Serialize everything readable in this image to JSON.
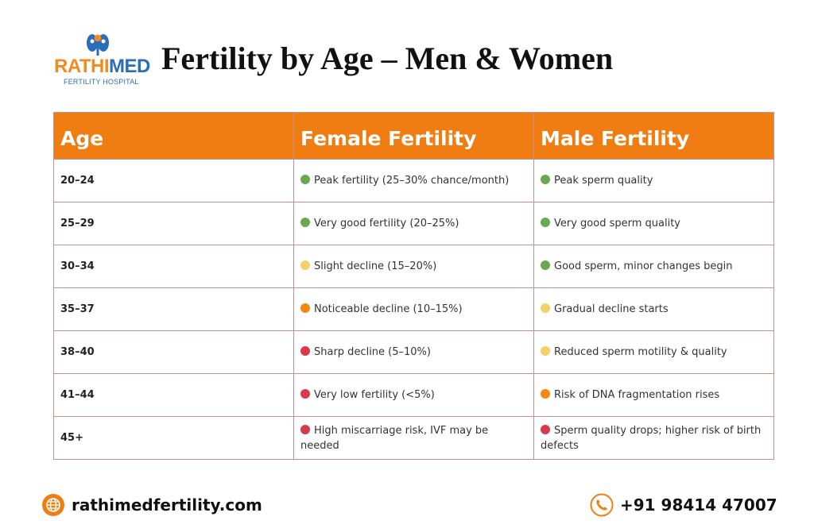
{
  "brand": {
    "name_part1": "RATHI",
    "name_part2": "MED",
    "subtitle": "FERTILITY HOSPITAL",
    "colors": {
      "orange": "#f08c1e",
      "blue": "#2a6db8"
    }
  },
  "title": "Fertility by Age – Men & Women",
  "table": {
    "headers": [
      "Age",
      "Female Fertility",
      "Male Fertility"
    ],
    "header_color": "#f07d12",
    "status_colors": {
      "green": "#6aa84f",
      "yellow": "#f6cf6b",
      "orange": "#f0890f",
      "red": "#d83a4b"
    },
    "rows": [
      {
        "age": "20–24",
        "female": {
          "status": "green",
          "text": "Peak fertility (25–30% chance/month)"
        },
        "male": {
          "status": "green",
          "text": "Peak sperm quality"
        }
      },
      {
        "age": "25–29",
        "female": {
          "status": "green",
          "text": "Very good fertility (20–25%)"
        },
        "male": {
          "status": "green",
          "text": "Very good sperm quality"
        }
      },
      {
        "age": "30–34",
        "female": {
          "status": "yellow",
          "text": "Slight decline (15–20%)"
        },
        "male": {
          "status": "green",
          "text": "Good sperm, minor changes begin"
        }
      },
      {
        "age": "35–37",
        "female": {
          "status": "orange",
          "text": "Noticeable decline (10–15%)"
        },
        "male": {
          "status": "yellow",
          "text": "Gradual decline starts"
        }
      },
      {
        "age": "38–40",
        "female": {
          "status": "red",
          "text": "Sharp decline (5–10%)"
        },
        "male": {
          "status": "yellow",
          "text": "Reduced sperm motility & quality"
        }
      },
      {
        "age": "41–44",
        "female": {
          "status": "red",
          "text": "Very low fertility (<5%)"
        },
        "male": {
          "status": "orange",
          "text": "Risk of DNA fragmentation rises"
        }
      },
      {
        "age": "45+",
        "female": {
          "status": "red",
          "text": "High miscarriage risk, IVF may be needed"
        },
        "male": {
          "status": "red",
          "text": "Sperm quality drops; higher risk of birth defects"
        }
      }
    ]
  },
  "footer": {
    "website": "rathimedfertility.com",
    "website_icon": "globe-icon",
    "phone": "+91 98414 47007",
    "phone_icon": "phone-icon"
  }
}
